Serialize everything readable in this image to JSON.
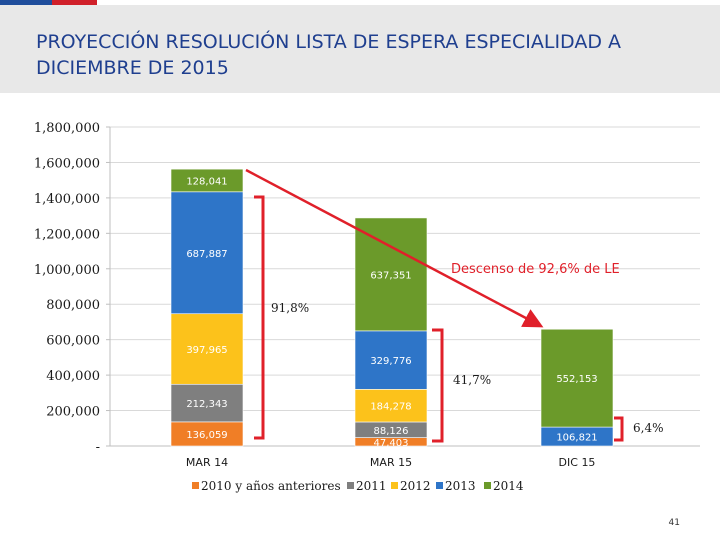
{
  "slide": {
    "title": "PROYECCIÓN RESOLUCIÓN LISTA DE ESPERA ESPECIALIDAD A DICIEMBRE DE 2015",
    "page_number": "41"
  },
  "chart_data": {
    "type": "bar",
    "stacked": true,
    "title": "PROYECCIÓN RESOLUCIÓN LISTA DE ESPERA ESPECIALIDAD A DICIEMBRE DE 2015",
    "categories": [
      "MAR 14",
      "MAR 15",
      "DIC 15"
    ],
    "ylim": [
      0,
      1800000
    ],
    "yticks": [
      0,
      200000,
      400000,
      600000,
      800000,
      1000000,
      1200000,
      1400000,
      1600000,
      1800000
    ],
    "ytick_labels": [
      "-",
      "200,000",
      "400,000",
      "600,000",
      "800,000",
      "1,000,000",
      "1,200,000",
      "1,400,000",
      "1,600,000",
      "1,800,000"
    ],
    "grid": true,
    "legend_position": "bottom",
    "series": [
      {
        "name": "2010 y años anteriores",
        "color": "#f07e26",
        "values": [
          136059,
          47403,
          0
        ],
        "labels": [
          "136,059",
          "47,403",
          ""
        ]
      },
      {
        "name": "2011",
        "color": "#7f7f7f",
        "values": [
          212343,
          88126,
          0
        ],
        "labels": [
          "212,343",
          "88,126",
          ""
        ]
      },
      {
        "name": "2012",
        "color": "#fcc21b",
        "values": [
          397965,
          184278,
          0
        ],
        "labels": [
          "397,965",
          "184,278",
          ""
        ]
      },
      {
        "name": "2013",
        "color": "#2e75c8",
        "values": [
          687887,
          329776,
          106821
        ],
        "labels": [
          "687,887",
          "329,776",
          "106,821"
        ]
      },
      {
        "name": "2014",
        "color": "#6b9a2a",
        "values": [
          128041,
          637351,
          552153
        ],
        "labels": [
          "128,041",
          "637,351",
          "552,153"
        ]
      }
    ],
    "annotations": {
      "descenso": "Descenso de 92,6% de LE",
      "pct_mar14": "91,8%",
      "pct_mar15": "41,7%",
      "pct_dic15": "6,4%"
    },
    "colors": {
      "annotation_red": "#e0202a",
      "label_text": "#ffffff",
      "axis_text": "#1a1a1a",
      "grid": "#d9d9d9"
    }
  }
}
